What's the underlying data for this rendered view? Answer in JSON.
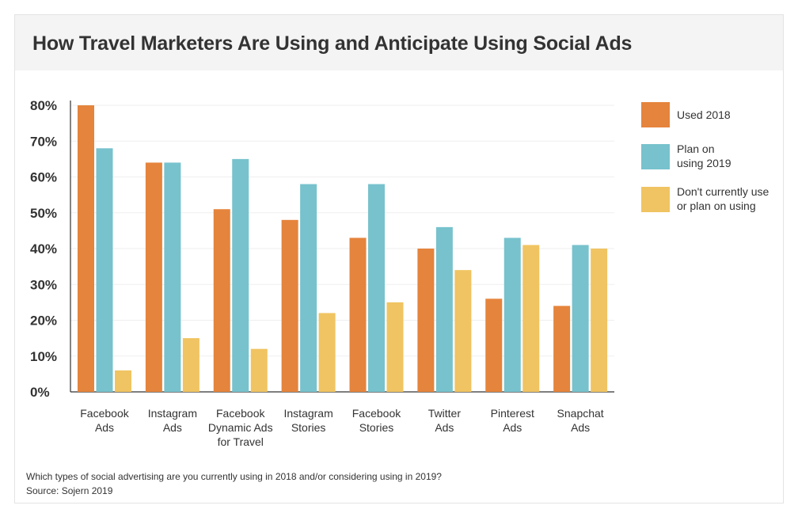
{
  "title": "How Travel Marketers Are Using and Anticipate Using Social Ads",
  "footer": {
    "question": "Which types of social advertising are you currently using in 2018 and/or considering using in 2019?",
    "source": "Source: Sojern 2019"
  },
  "chart_data": {
    "type": "bar",
    "title": "How Travel Marketers Are Using and Anticipate Using Social Ads",
    "categories": [
      [
        "Facebook",
        "Ads"
      ],
      [
        "Instagram",
        "Ads"
      ],
      [
        "Facebook",
        "Dynamic Ads",
        "for Travel"
      ],
      [
        "Instagram",
        "Stories"
      ],
      [
        "Facebook",
        "Stories"
      ],
      [
        "Twitter",
        "Ads"
      ],
      [
        "Pinterest",
        "Ads"
      ],
      [
        "Snapchat",
        "Ads"
      ]
    ],
    "series": [
      {
        "name": "Used 2018",
        "color": "#e5843c",
        "values": [
          80,
          64,
          51,
          48,
          43,
          40,
          26,
          24
        ]
      },
      {
        "name": "Plan on using 2019",
        "legend_lines": [
          "Plan on",
          "using 2019"
        ],
        "color": "#77c2cd",
        "values": [
          68,
          64,
          65,
          58,
          58,
          46,
          43,
          41
        ]
      },
      {
        "name": "Don't currently use or plan on using",
        "legend_lines": [
          "Don't currently use",
          "or plan on using"
        ],
        "color": "#f0c462",
        "values": [
          6,
          15,
          12,
          22,
          25,
          34,
          41,
          40
        ]
      }
    ],
    "yticks": [
      "0%",
      "10%",
      "20%",
      "30%",
      "40%",
      "50%",
      "60%",
      "70%",
      "80%"
    ],
    "ylim": [
      0,
      80
    ],
    "grid": true,
    "legend_position": "right"
  }
}
